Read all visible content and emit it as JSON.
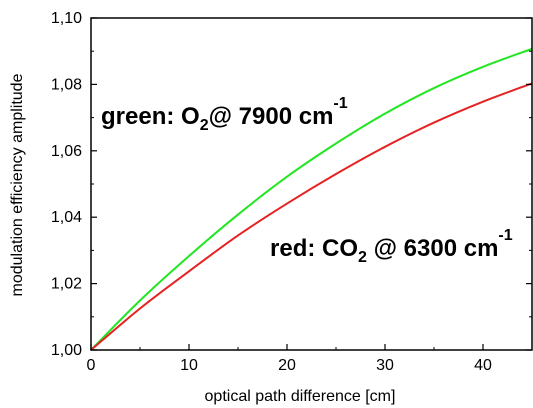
{
  "chart_data": {
    "type": "line",
    "title": "",
    "xlabel": "optical path difference [cm]",
    "ylabel": "modulation efficiency amplitude",
    "xlim": [
      0,
      45
    ],
    "ylim": [
      1.0,
      1.1
    ],
    "xticks": [
      0,
      10,
      20,
      30,
      40
    ],
    "xtick_labels": [
      "0",
      "10",
      "20",
      "30",
      "40"
    ],
    "yticks": [
      1.0,
      1.02,
      1.04,
      1.06,
      1.08,
      1.1
    ],
    "ytick_labels": [
      "1,00",
      "1,02",
      "1,04",
      "1,06",
      "1,08",
      "1,10"
    ],
    "grid": false,
    "series": [
      {
        "color": "#22e622",
        "x": [
          0,
          5,
          10,
          15,
          20,
          25,
          30,
          35,
          40,
          45
        ],
        "y": [
          1.0,
          1.0149,
          1.0283,
          1.0408,
          1.0522,
          1.0622,
          1.0712,
          1.0789,
          1.0853,
          1.0907
        ]
      },
      {
        "color": "#e62222",
        "x": [
          0,
          5,
          10,
          15,
          20,
          25,
          30,
          35,
          40,
          45
        ],
        "y": [
          1.0,
          1.0125,
          1.0237,
          1.0345,
          1.0441,
          1.053,
          1.0612,
          1.0685,
          1.0748,
          1.0803
        ]
      }
    ],
    "annotations": [
      {
        "parts": [
          {
            "text": "green: O",
            "role": "base"
          },
          {
            "text": "2",
            "role": "sub"
          },
          {
            "text": "@ 7900 cm",
            "role": "base"
          },
          {
            "text": "-1",
            "role": "sup"
          }
        ]
      },
      {
        "parts": [
          {
            "text": "red: CO",
            "role": "base"
          },
          {
            "text": "2",
            "role": "sub"
          },
          {
            "text": " @ 6300 cm",
            "role": "base"
          },
          {
            "text": "-1",
            "role": "sup"
          }
        ]
      }
    ]
  }
}
